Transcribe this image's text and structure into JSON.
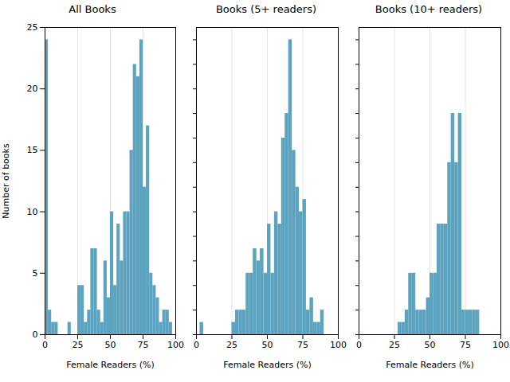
{
  "chart_data": [
    {
      "type": "histogram",
      "title": "All Books",
      "xlabel": "Female Readers (%)",
      "ylabel": "Number of books",
      "bins": [
        0,
        2.5,
        5,
        7.5,
        10,
        12.5,
        15,
        17.5,
        20,
        22.5,
        25,
        27.5,
        30,
        32.5,
        35,
        37.5,
        40,
        42.5,
        45,
        47.5,
        50,
        52.5,
        55,
        57.5,
        60,
        62.5,
        65,
        67.5,
        70,
        72.5,
        75,
        77.5,
        80,
        82.5,
        85,
        87.5,
        90,
        92.5,
        95,
        97.5,
        100
      ],
      "values": [
        24,
        2,
        1,
        1,
        0,
        0,
        0,
        1,
        0,
        0,
        4,
        4,
        1,
        2,
        7,
        7,
        2,
        1,
        6,
        3,
        10,
        4,
        9,
        6,
        10,
        10,
        15,
        22,
        21,
        24,
        12,
        17,
        5,
        4,
        3,
        1,
        2,
        2,
        1,
        0
      ],
      "color": "#5ba3be",
      "xlim": [
        0,
        100
      ],
      "xticks": [
        0,
        25,
        50,
        75,
        100
      ],
      "ylim": [
        0,
        25
      ],
      "yticks": [
        0,
        5,
        10,
        15,
        20,
        25
      ],
      "grid": "x"
    },
    {
      "type": "histogram",
      "title": "Books (5+ readers)",
      "xlabel": "Female Readers (%)",
      "bins": [
        0,
        2.5,
        5,
        7.5,
        10,
        12.5,
        15,
        17.5,
        20,
        22.5,
        25,
        27.5,
        30,
        32.5,
        35,
        37.5,
        40,
        42.5,
        45,
        47.5,
        50,
        52.5,
        55,
        57.5,
        60,
        62.5,
        65,
        67.5,
        70,
        72.5,
        75,
        77.5,
        80,
        82.5,
        85,
        87.5,
        90,
        92.5,
        95,
        97.5,
        100
      ],
      "values": [
        0,
        1,
        0,
        0,
        0,
        0,
        0,
        0,
        0,
        0,
        1,
        2,
        2,
        2,
        5,
        5,
        7,
        6,
        7,
        5,
        9,
        5,
        10,
        9,
        16,
        18,
        24,
        15,
        12,
        10,
        11,
        2,
        3,
        1,
        1,
        2,
        0,
        0,
        0,
        0
      ],
      "color": "#5ba3be",
      "xlim": [
        0,
        100
      ],
      "xticks": [
        0,
        25,
        50,
        75,
        100
      ],
      "ylim": [
        0,
        25
      ],
      "grid": "x",
      "tick_labels": "x"
    },
    {
      "type": "histogram",
      "title": "Books (10+ readers)",
      "xlabel": "Female Readers (%)",
      "bins": [
        0,
        2.5,
        5,
        7.5,
        10,
        12.5,
        15,
        17.5,
        20,
        22.5,
        25,
        27.5,
        30,
        32.5,
        35,
        37.5,
        40,
        42.5,
        45,
        47.5,
        50,
        52.5,
        55,
        57.5,
        60,
        62.5,
        65,
        67.5,
        70,
        72.5,
        75,
        77.5,
        80,
        82.5,
        85,
        87.5,
        90,
        92.5,
        95,
        97.5,
        100
      ],
      "values": [
        0,
        0,
        0,
        0,
        0,
        0,
        0,
        0,
        0,
        0,
        0,
        1,
        1,
        2,
        5,
        5,
        2,
        2,
        2,
        3,
        5,
        5,
        9,
        9,
        9,
        14,
        18,
        14,
        18,
        2,
        2,
        2,
        2,
        2,
        0,
        0,
        0,
        0,
        0,
        0
      ],
      "color": "#5ba3be",
      "xlim": [
        0,
        100
      ],
      "xticks": [
        0,
        25,
        50,
        75,
        100
      ],
      "ylim": [
        0,
        25
      ],
      "grid": "x",
      "tick_labels": "x"
    }
  ]
}
